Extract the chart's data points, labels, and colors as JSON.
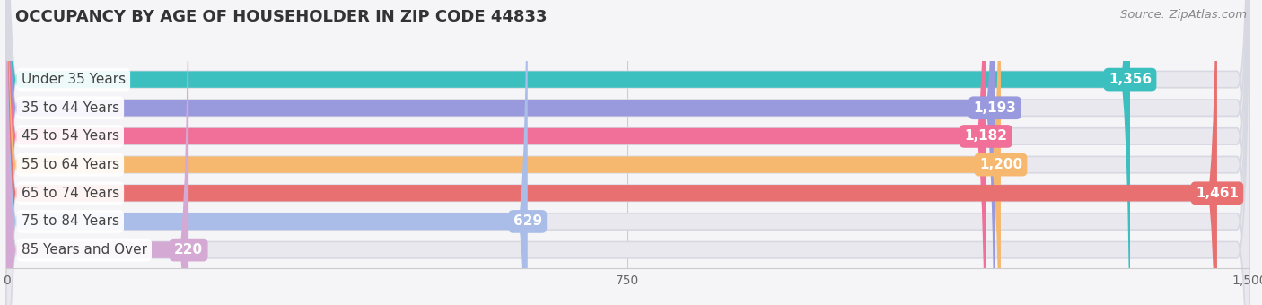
{
  "title": "OCCUPANCY BY AGE OF HOUSEHOLDER IN ZIP CODE 44833",
  "source": "Source: ZipAtlas.com",
  "categories": [
    "Under 35 Years",
    "35 to 44 Years",
    "45 to 54 Years",
    "55 to 64 Years",
    "65 to 74 Years",
    "75 to 84 Years",
    "85 Years and Over"
  ],
  "values": [
    1356,
    1193,
    1182,
    1200,
    1461,
    629,
    220
  ],
  "bar_colors": [
    "#3bbfbf",
    "#9999dd",
    "#f07099",
    "#f5b86e",
    "#e87070",
    "#aabde8",
    "#d4aad4"
  ],
  "xlim": [
    0,
    1500
  ],
  "xticks": [
    0,
    750,
    1500
  ],
  "bg_color": "#f5f5f8",
  "bar_bg_color": "#e8e8ee",
  "title_fontsize": 13,
  "source_fontsize": 9.5,
  "label_fontsize": 11,
  "value_fontsize": 11,
  "bar_height": 0.58,
  "fig_width": 14.06,
  "fig_height": 3.4
}
